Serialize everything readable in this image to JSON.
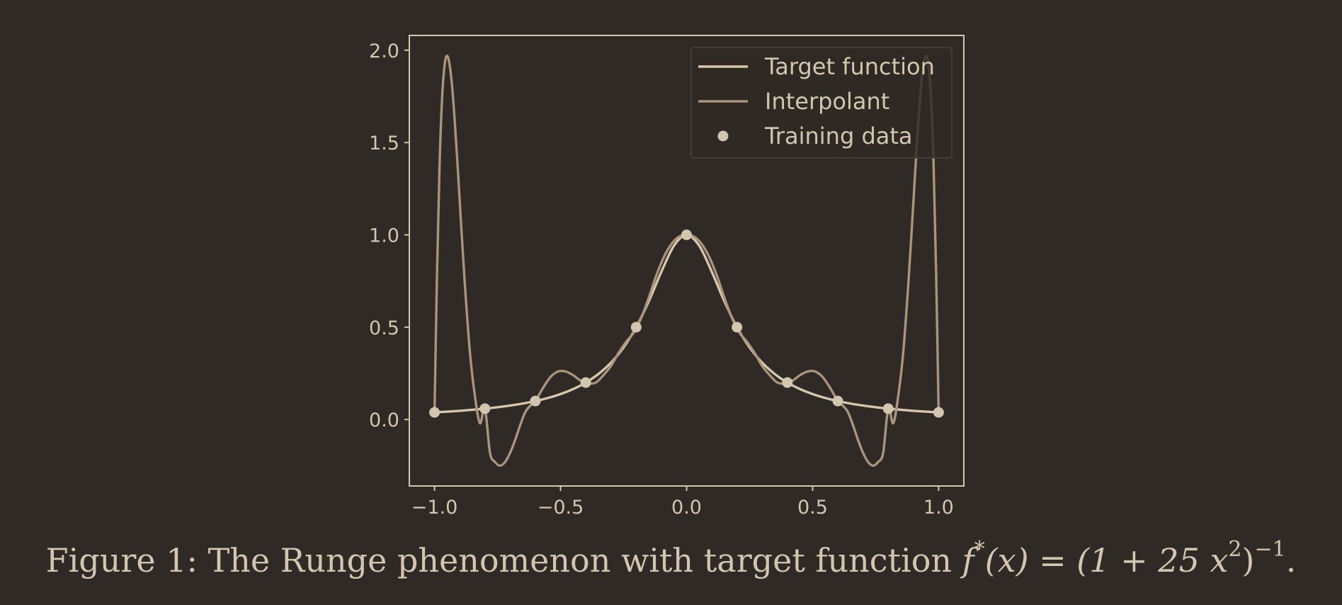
{
  "caption": {
    "label": "Figure 1:",
    "text": "The Runge phenomenon with target function",
    "math_lhs": "f",
    "math_star": "*",
    "math_arg": "(x) = (1 + 25 x",
    "math_sq": "2",
    "math_close": ")",
    "math_exp": "−1",
    "period": "."
  },
  "colors": {
    "background": "#2f2a25",
    "axes": "#d3c6ae",
    "target": "#d6c7ad",
    "interpolant": "#a8957c",
    "points": "#d3c6ae"
  },
  "chart_data": {
    "type": "line",
    "function": "f*(x) = (1 + 25 x^2)^-1",
    "xlim": [
      -1.1,
      1.1
    ],
    "ylim": [
      -0.36,
      2.08
    ],
    "xticks": [
      {
        "value": -1.0,
        "label": "−1.0"
      },
      {
        "value": -0.5,
        "label": "−0.5"
      },
      {
        "value": 0.0,
        "label": "0.0"
      },
      {
        "value": 0.5,
        "label": "0.5"
      },
      {
        "value": 1.0,
        "label": "1.0"
      }
    ],
    "yticks": [
      {
        "value": 0.0,
        "label": "0.0"
      },
      {
        "value": 0.5,
        "label": "0.5"
      },
      {
        "value": 1.0,
        "label": "1.0"
      },
      {
        "value": 1.5,
        "label": "1.5"
      },
      {
        "value": 2.0,
        "label": "2.0"
      }
    ],
    "grid": false,
    "legend_position": "top-right",
    "legend": [
      {
        "label": "Target function",
        "kind": "line"
      },
      {
        "label": "Interpolant",
        "kind": "line"
      },
      {
        "label": "Training data",
        "kind": "marker"
      }
    ],
    "series": [
      {
        "name": "Target function",
        "kind": "curve",
        "x": [
          -1.0,
          -0.95,
          -0.9,
          -0.85,
          -0.8,
          -0.75,
          -0.7,
          -0.65,
          -0.6,
          -0.55,
          -0.5,
          -0.45,
          -0.4,
          -0.35,
          -0.3,
          -0.25,
          -0.2,
          -0.15,
          -0.1,
          -0.05,
          0.0,
          0.05,
          0.1,
          0.15,
          0.2,
          0.25,
          0.3,
          0.35,
          0.4,
          0.45,
          0.5,
          0.55,
          0.6,
          0.65,
          0.7,
          0.75,
          0.8,
          0.85,
          0.9,
          0.95,
          1.0
        ],
        "y": [
          0.0385,
          0.0425,
          0.0471,
          0.0525,
          0.0588,
          0.0664,
          0.0755,
          0.0865,
          0.1,
          0.1168,
          0.1379,
          0.1649,
          0.2,
          0.2462,
          0.3077,
          0.3902,
          0.5,
          0.64,
          0.8,
          0.9412,
          1.0,
          0.9412,
          0.8,
          0.64,
          0.5,
          0.3902,
          0.3077,
          0.2462,
          0.2,
          0.1649,
          0.1379,
          0.1168,
          0.1,
          0.0865,
          0.0755,
          0.0664,
          0.0588,
          0.0525,
          0.0471,
          0.0425,
          0.0385
        ]
      },
      {
        "name": "Interpolant",
        "kind": "curve",
        "x": [
          -1.0,
          -0.99,
          -0.98,
          -0.97,
          -0.96,
          -0.95,
          -0.94,
          -0.93,
          -0.92,
          -0.91,
          -0.9,
          -0.88,
          -0.86,
          -0.84,
          -0.82,
          -0.8,
          -0.78,
          -0.76,
          -0.74,
          -0.72,
          -0.7,
          -0.68,
          -0.66,
          -0.64,
          -0.62,
          -0.6,
          -0.57,
          -0.54,
          -0.51,
          -0.48,
          -0.45,
          -0.42,
          -0.39,
          -0.36,
          -0.33,
          -0.3,
          -0.27,
          -0.24,
          -0.21,
          -0.18,
          -0.15,
          -0.12,
          -0.09,
          -0.06,
          -0.03,
          0.0,
          0.03,
          0.06,
          0.09,
          0.12,
          0.15,
          0.18,
          0.21,
          0.24,
          0.27,
          0.3,
          0.33,
          0.36,
          0.39,
          0.42,
          0.45,
          0.48,
          0.51,
          0.54,
          0.57,
          0.6,
          0.62,
          0.64,
          0.66,
          0.68,
          0.7,
          0.72,
          0.74,
          0.76,
          0.78,
          0.8,
          0.82,
          0.84,
          0.86,
          0.88,
          0.9,
          0.91,
          0.92,
          0.93,
          0.94,
          0.95,
          0.96,
          0.97,
          0.98,
          0.99,
          1.0
        ],
        "y": [
          0.0385,
          0.8,
          1.38,
          1.74,
          1.92,
          1.97,
          1.92,
          1.8,
          1.62,
          1.41,
          1.18,
          0.74,
          0.37,
          0.13,
          -0.02,
          0.0588,
          -0.18,
          -0.23,
          -0.25,
          -0.23,
          -0.18,
          -0.11,
          -0.03,
          0.04,
          0.075,
          0.1,
          0.17,
          0.23,
          0.26,
          0.26,
          0.24,
          0.21,
          0.196,
          0.2,
          0.24,
          0.29,
          0.36,
          0.42,
          0.47,
          0.55,
          0.66,
          0.78,
          0.88,
          0.95,
          0.99,
          1.0,
          0.99,
          0.95,
          0.88,
          0.78,
          0.66,
          0.55,
          0.47,
          0.42,
          0.36,
          0.29,
          0.24,
          0.2,
          0.196,
          0.21,
          0.24,
          0.26,
          0.26,
          0.23,
          0.17,
          0.1,
          0.075,
          0.04,
          -0.03,
          -0.11,
          -0.18,
          -0.23,
          -0.25,
          -0.23,
          -0.18,
          0.0588,
          -0.02,
          0.13,
          0.37,
          0.74,
          1.18,
          1.41,
          1.62,
          1.8,
          1.92,
          1.97,
          1.92,
          1.74,
          1.38,
          0.8,
          0.0385
        ]
      },
      {
        "name": "Training data",
        "kind": "markers",
        "x": [
          -1.0,
          -0.8,
          -0.6,
          -0.4,
          -0.2,
          0.0,
          0.2,
          0.4,
          0.6,
          0.8,
          1.0
        ],
        "y": [
          0.0385,
          0.0588,
          0.1,
          0.2,
          0.5,
          1.0,
          0.5,
          0.2,
          0.1,
          0.0588,
          0.0385
        ]
      }
    ]
  }
}
